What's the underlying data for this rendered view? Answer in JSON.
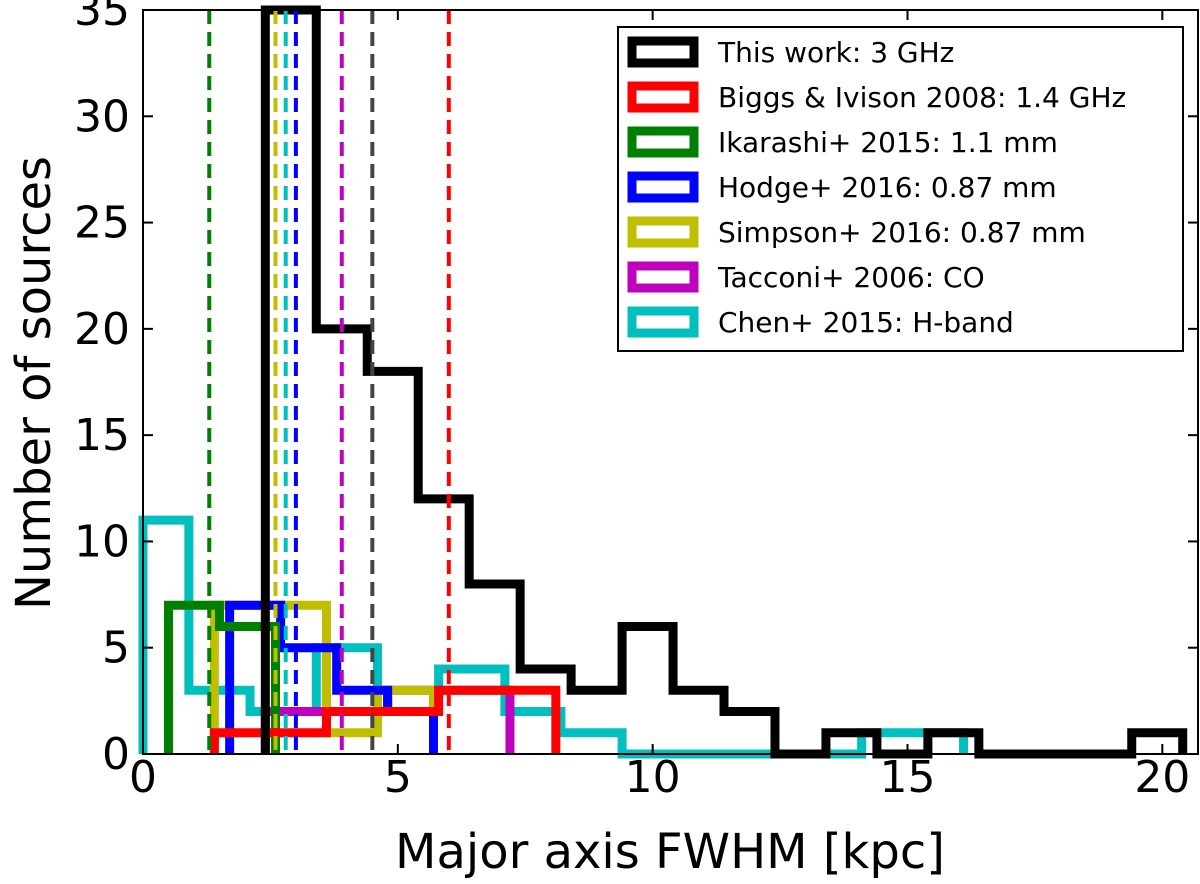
{
  "chart_data": {
    "type": "histogram",
    "xlabel": "Major axis FWHM [kpc]",
    "ylabel": "Number of sources",
    "xlim": [
      0,
      20.7
    ],
    "ylim": [
      0,
      35
    ],
    "x_ticks": [
      0,
      5,
      10,
      15,
      20
    ],
    "y_ticks": [
      0,
      5,
      10,
      15,
      20,
      25,
      30,
      35
    ],
    "x_tick_labels": [
      "0",
      "5",
      "10",
      "15",
      "20"
    ],
    "y_tick_labels": [
      "0",
      "5",
      "10",
      "15",
      "20",
      "25",
      "30",
      "35"
    ],
    "legend_position": "top-right",
    "series": [
      {
        "name": "This work: 3 GHz",
        "color": "#000000",
        "edges": [
          2.4,
          3.4,
          4.4,
          5.4,
          6.4,
          7.4,
          8.4,
          9.4,
          10.4,
          11.4,
          12.4,
          13.4,
          14.4,
          15.4,
          16.4,
          17.4,
          18.4,
          19.4,
          20.4
        ],
        "counts": [
          35,
          20,
          18,
          12,
          8,
          4,
          3,
          6,
          3,
          2,
          0,
          1,
          0,
          1,
          0,
          0,
          0,
          1
        ],
        "median": 4.5
      },
      {
        "name": "Biggs & Ivison 2008: 1.4 GHz",
        "color": "#ff0000",
        "edges": [
          1.4,
          3.6,
          5.8,
          8.1
        ],
        "counts": [
          1,
          2,
          3
        ],
        "median": 6.0
      },
      {
        "name": "Ikarashi+ 2015: 1.1 mm",
        "color": "#008000",
        "edges": [
          0.5,
          1.5,
          2.6
        ],
        "counts": [
          7,
          6
        ],
        "median": 1.3
      },
      {
        "name": "Hodge+ 2016: 0.87 mm",
        "color": "#0000ff",
        "edges": [
          1.7,
          2.7,
          3.8,
          4.8,
          5.7
        ],
        "counts": [
          7,
          5,
          3,
          2
        ],
        "median": 3.0
      },
      {
        "name": "Simpson+ 2016: 0.87 mm",
        "color": "#bfbf00",
        "edges": [
          1.4,
          2.7,
          3.6,
          4.6,
          5.7
        ],
        "counts": [
          7,
          7,
          1,
          3
        ],
        "median": 2.6
      },
      {
        "name": "Tacconi+ 2006: CO",
        "color": "#bf00bf",
        "edges": [
          2.4,
          4.8,
          7.2
        ],
        "counts": [
          2,
          3
        ],
        "median": 3.9
      },
      {
        "name": "Chen+ 2015: H-band",
        "color": "#00bfbf",
        "edges": [
          0,
          0.9,
          2.1,
          3.4,
          4.6,
          5.8,
          7.1,
          8.2,
          9.4,
          10.6,
          11.7,
          12.9,
          14.1,
          15.3,
          16.1
        ],
        "counts": [
          11,
          3,
          2,
          5,
          2,
          4,
          2,
          1,
          0,
          0,
          0,
          0,
          1,
          1
        ],
        "median": 2.8
      }
    ]
  }
}
